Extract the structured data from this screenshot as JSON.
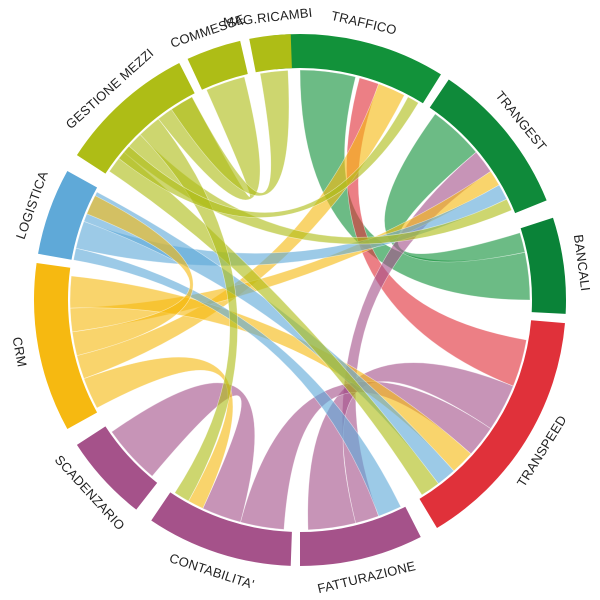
{
  "segments": [
    {
      "id": "traffico",
      "label": "TRAFFICO",
      "color": "#12923a",
      "start": -6,
      "end": 32
    },
    {
      "id": "trangest",
      "label": "TRANGEST",
      "color": "#0f8a3a",
      "start": 34,
      "end": 68
    },
    {
      "id": "bancali",
      "label": "BANCALI",
      "color": "#0a8338",
      "start": 72,
      "end": 93
    },
    {
      "id": "transpeed",
      "label": "TRANSPEED",
      "color": "#e0313a",
      "start": 95,
      "end": 149
    },
    {
      "id": "fatturazione",
      "label": "FATTURAZIONE",
      "color": "#a5528a",
      "start": 153,
      "end": 180
    },
    {
      "id": "contabilita",
      "label": "CONTABILITA'",
      "color": "#a5528a",
      "start": 182,
      "end": 214
    },
    {
      "id": "scadenzario",
      "label": "SCADENZARIO",
      "color": "#a5528a",
      "start": 218,
      "end": 237
    },
    {
      "id": "crm",
      "label": "CRM",
      "color": "#f6b911",
      "start": 241,
      "end": 278
    },
    {
      "id": "logistica",
      "label": "LOGISTICA",
      "color": "#5fa9d8",
      "start": 280,
      "end": 299
    },
    {
      "id": "gestione-mezzi",
      "label": "GESTIONE MEZZI",
      "color": "#aebd16",
      "start": 303,
      "end": 333
    },
    {
      "id": "commesse",
      "label": "COMMESSE",
      "color": "#aebd16",
      "start": 335,
      "end": 347
    },
    {
      "id": "mag-ricambi",
      "label": "MAG.RICAMBI",
      "color": "#aebd16",
      "start": 349,
      "end": 358
    }
  ],
  "ribbons": [
    {
      "a": "traffico",
      "a_span": [
        0,
        14
      ],
      "b": "bancali",
      "b_span": [
        78,
        90
      ],
      "color": "#12923a"
    },
    {
      "a": "traffico",
      "a_span": [
        15,
        20
      ],
      "b": "transpeed",
      "b_span": [
        100,
        112
      ],
      "color": "#e0313a"
    },
    {
      "a": "traffico",
      "a_span": [
        20,
        27
      ],
      "b": "crm",
      "b_span": [
        250,
        256
      ],
      "color": "#f6b911"
    },
    {
      "a": "trangest",
      "a_span": [
        36,
        50
      ],
      "b": "bancali",
      "b_span": [
        73,
        78
      ],
      "color": "#12923a"
    },
    {
      "a": "trangest",
      "a_span": [
        50,
        56
      ],
      "b": "fatturazione",
      "b_span": [
        160,
        166
      ],
      "color": "#a5528a"
    },
    {
      "a": "trangest",
      "a_span": [
        56,
        60
      ],
      "b": "crm",
      "b_span": [
        262,
        268
      ],
      "color": "#f6b911"
    },
    {
      "a": "trangest",
      "a_span": [
        60,
        64
      ],
      "b": "logistica",
      "b_span": [
        283,
        290
      ],
      "color": "#5fa9d8"
    },
    {
      "a": "trangest",
      "a_span": [
        64,
        67
      ],
      "b": "gestione-mezzi",
      "b_span": [
        310,
        316
      ],
      "color": "#aebd16"
    },
    {
      "a": "transpeed",
      "a_span": [
        112,
        124
      ],
      "b": "fatturazione",
      "b_span": [
        166,
        178
      ],
      "color": "#a5528a"
    },
    {
      "a": "transpeed",
      "a_span": [
        124,
        132
      ],
      "b": "contabilita",
      "b_span": [
        184,
        195
      ],
      "color": "#a5528a"
    },
    {
      "a": "transpeed",
      "a_span": [
        132,
        138
      ],
      "b": "crm",
      "b_span": [
        268,
        276
      ],
      "color": "#f6b911"
    },
    {
      "a": "transpeed",
      "a_span": [
        138,
        143
      ],
      "b": "logistica",
      "b_span": [
        290,
        298
      ],
      "color": "#5fa9d8"
    },
    {
      "a": "transpeed",
      "a_span": [
        143,
        148
      ],
      "b": "gestione-mezzi",
      "b_span": [
        304,
        310
      ],
      "color": "#aebd16"
    },
    {
      "a": "fatturazione",
      "a_span": [
        154,
        160
      ],
      "b": "logistica",
      "b_span": [
        280,
        283
      ],
      "color": "#5fa9d8"
    },
    {
      "a": "contabilita",
      "a_span": [
        195,
        205
      ],
      "b": "scadenzario",
      "b_span": [
        220,
        235
      ],
      "color": "#a5528a"
    },
    {
      "a": "contabilita",
      "a_span": [
        205,
        209
      ],
      "b": "crm",
      "b_span": [
        242,
        250
      ],
      "color": "#f6b911"
    },
    {
      "a": "contabilita",
      "a_span": [
        209,
        213
      ],
      "b": "gestione-mezzi",
      "b_span": [
        316,
        322
      ],
      "color": "#aebd16"
    },
    {
      "a": "crm",
      "a_span": [
        256,
        262
      ],
      "b": "logistica",
      "b_span": [
        292,
        297
      ],
      "color": "#f6b911"
    },
    {
      "a": "gestione-mezzi",
      "a_span": [
        322,
        332
      ],
      "b": "commesse",
      "b_span": [
        336,
        346
      ],
      "color": "#aebd16"
    },
    {
      "a": "mag-ricambi",
      "a_span": [
        350,
        357
      ],
      "b": "gestione-mezzi",
      "b_span": [
        326,
        332
      ],
      "color": "#aebd16"
    },
    {
      "a": "traffico",
      "a_span": [
        28,
        31
      ],
      "b": "gestione-mezzi",
      "b_span": [
        308,
        312
      ],
      "color": "#aebd16"
    }
  ]
}
